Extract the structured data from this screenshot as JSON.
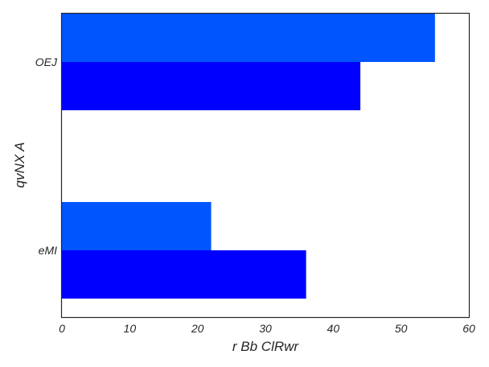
{
  "chart_data": {
    "type": "bar",
    "orientation": "horizontal",
    "categories": [
      "OEJ",
      "eMI"
    ],
    "series": [
      {
        "values": [
          55,
          22
        ],
        "color": "#0055ff"
      },
      {
        "values": [
          44,
          36
        ],
        "color": "#0000ff"
      }
    ],
    "xlabel": "r Bb ClRwr",
    "ylabel": "qvNX A",
    "xlim": [
      0,
      60
    ],
    "xticks": [
      0,
      10,
      20,
      30,
      40,
      50,
      60
    ],
    "grid": false,
    "legend": false
  }
}
